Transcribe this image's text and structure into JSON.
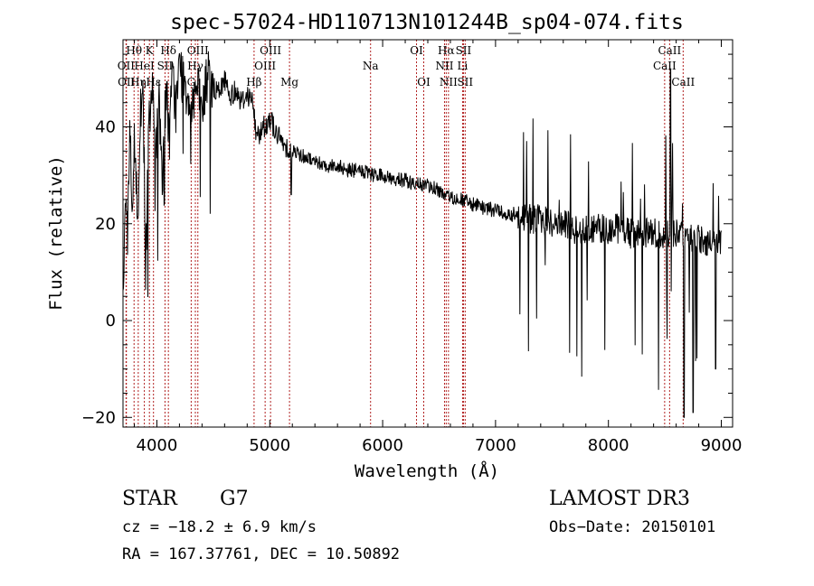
{
  "chart_data": {
    "type": "line",
    "title": "spec-57024-HD110713N101244B_sp04-074.fits",
    "xlabel": "Wavelength (Å)",
    "ylabel": "Flux (relative)",
    "xlim": [
      3700,
      9100
    ],
    "ylim": [
      -22,
      58
    ],
    "x_ticks": [
      4000,
      5000,
      6000,
      7000,
      8000,
      9000
    ],
    "y_ticks": [
      -20,
      0,
      20,
      40
    ],
    "line_color": "#000000",
    "marker_color": "#b22222",
    "spectrum_anchors": {
      "x": [
        3700,
        3720,
        3740,
        3760,
        3780,
        3800,
        3830,
        3860,
        3880,
        3900,
        3930,
        3960,
        3990,
        4020,
        4050,
        4080,
        4110,
        4140,
        4170,
        4200,
        4250,
        4300,
        4350,
        4400,
        4450,
        4500,
        4550,
        4600,
        4650,
        4700,
        4750,
        4800,
        4850,
        4880,
        4950,
        5000,
        5050,
        5100,
        5150,
        5200,
        5300,
        5400,
        5500,
        5600,
        5700,
        5800,
        5900,
        6000,
        6100,
        6200,
        6300,
        6400,
        6500,
        6563,
        6600,
        6650,
        6700,
        6800,
        6900,
        7000,
        7100,
        7200,
        7300,
        7400,
        7500,
        7600,
        7700,
        7800,
        7900,
        8000,
        8100,
        8200,
        8300,
        8400,
        8500,
        8600,
        8700,
        8800,
        8900,
        9000
      ],
      "y": [
        5,
        28,
        16,
        42,
        24,
        38,
        20,
        46,
        44,
        12,
        40,
        47,
        35,
        44,
        30,
        48,
        38,
        50,
        44,
        52,
        49,
        45,
        48,
        43,
        51,
        48,
        47,
        50,
        46,
        48,
        45,
        47,
        45,
        38,
        40,
        42,
        39,
        37,
        36,
        35,
        34,
        33,
        32,
        32,
        31,
        31,
        30,
        30,
        29,
        29,
        28,
        28,
        27,
        25,
        26,
        25,
        25,
        24,
        23,
        23,
        22,
        22,
        21,
        21,
        20,
        20,
        19,
        19,
        19,
        19,
        19,
        18,
        18,
        18,
        18,
        18,
        17,
        17,
        16,
        16
      ]
    },
    "spectrum_seed": 57024,
    "spectral_lines": [
      {
        "label": "Hθ",
        "wavelength": 3798,
        "row": 1
      },
      {
        "label": "OII",
        "wavelength": 3727,
        "row": 2
      },
      {
        "label": "OII",
        "wavelength": 3730,
        "row": 3
      },
      {
        "label": "Hη",
        "wavelength": 3835,
        "row": 3
      },
      {
        "label": "K",
        "wavelength": 3934,
        "row": 1
      },
      {
        "label": "HeI",
        "wavelength": 3889,
        "row": 2
      },
      {
        "label": "Hε",
        "wavelength": 3970,
        "row": 3
      },
      {
        "label": "SII",
        "wavelength": 4072,
        "row": 2
      },
      {
        "label": "Hδ",
        "wavelength": 4102,
        "row": 1
      },
      {
        "label": "OIII",
        "wavelength": 4363,
        "row": 1
      },
      {
        "label": "Hγ",
        "wavelength": 4341,
        "row": 2
      },
      {
        "label": "G",
        "wavelength": 4304,
        "row": 3
      },
      {
        "label": "Hβ",
        "wavelength": 4861,
        "row": 3
      },
      {
        "label": "OIII",
        "wavelength": 5007,
        "row": 1
      },
      {
        "label": "OIII",
        "wavelength": 4959,
        "row": 2
      },
      {
        "label": "Mg",
        "wavelength": 5175,
        "row": 3
      },
      {
        "label": "Na",
        "wavelength": 5893,
        "row": 2
      },
      {
        "label": "OI",
        "wavelength": 6300,
        "row": 1
      },
      {
        "label": "OI",
        "wavelength": 6364,
        "row": 3
      },
      {
        "label": "Hα",
        "wavelength": 6563,
        "row": 1
      },
      {
        "label": "NII",
        "wavelength": 6548,
        "row": 2
      },
      {
        "label": "NII",
        "wavelength": 6583,
        "row": 3
      },
      {
        "label": "SII",
        "wavelength": 6716,
        "row": 1
      },
      {
        "label": "Li",
        "wavelength": 6708,
        "row": 2
      },
      {
        "label": "SII",
        "wavelength": 6731,
        "row": 3
      },
      {
        "label": "CaII",
        "wavelength": 8542,
        "row": 1
      },
      {
        "label": "CaII",
        "wavelength": 8498,
        "row": 2
      },
      {
        "label": "CaII",
        "wavelength": 8662,
        "row": 3
      }
    ]
  },
  "info": {
    "class_label": "STAR",
    "subclass": "G7",
    "survey": "LAMOST DR3",
    "cz": "cz = −18.2 ± 6.9 km/s",
    "obs_date": "Obs−Date: 20150101",
    "coords": "RA = 167.37761, DEC =  10.50892"
  }
}
